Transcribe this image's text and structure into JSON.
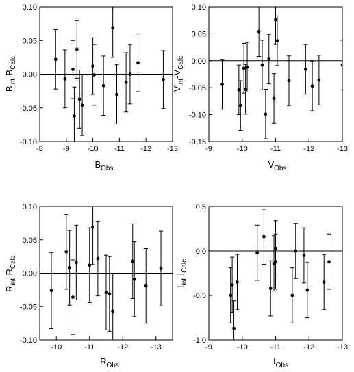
{
  "figure": {
    "panels": [
      {
        "ylabel_main": "B",
        "ylabel_sub1": "int",
        "ylabel_mid": "-B",
        "ylabel_sub2": "Calc",
        "xlabel_main": "B",
        "xlabel_sub": "Obs"
      },
      {
        "ylabel_main": "V",
        "ylabel_sub1": "int",
        "ylabel_mid": "-V",
        "ylabel_sub2": "Calc",
        "xlabel_main": "V",
        "xlabel_sub": "Obs"
      },
      {
        "ylabel_main": "R",
        "ylabel_sub1": "int",
        "ylabel_mid": "-R",
        "ylabel_sub2": "Calc",
        "xlabel_main": "R",
        "xlabel_sub": "Obs"
      },
      {
        "ylabel_main": "I",
        "ylabel_sub1": "int",
        "ylabel_mid": "-I",
        "ylabel_sub2": "Calc",
        "xlabel_main": "I",
        "xlabel_sub": "Obs"
      }
    ]
  },
  "chart_data": [
    {
      "type": "scatter",
      "title": "",
      "xlabel": "B_Obs",
      "ylabel": "B_int-B_Calc",
      "xlim": [
        -8,
        -13
      ],
      "ylim": [
        -0.1,
        0.1
      ],
      "xticks": [
        "-8",
        "-9",
        "-10",
        "-11",
        "-12",
        "-13"
      ],
      "yticks": [
        "-0.10",
        "-0.05",
        "0.00",
        "0.05",
        "0.10"
      ],
      "reference_line_y": 0,
      "error_bars": true,
      "points": [
        {
          "x": -8.6,
          "y": 0.022,
          "err": 0.044
        },
        {
          "x": -8.95,
          "y": -0.007,
          "err": 0.043
        },
        {
          "x": -9.25,
          "y": 0.007,
          "err": 0.043
        },
        {
          "x": -9.3,
          "y": -0.062,
          "err": 0.043
        },
        {
          "x": -9.4,
          "y": 0.037,
          "err": 0.043
        },
        {
          "x": -9.5,
          "y": -0.037,
          "err": 0.043
        },
        {
          "x": -9.6,
          "y": -0.046,
          "err": 0.045
        },
        {
          "x": -10.0,
          "y": 0.012,
          "err": 0.042
        },
        {
          "x": -10.05,
          "y": -0.001,
          "err": 0.045
        },
        {
          "x": -10.4,
          "y": -0.017,
          "err": 0.044
        },
        {
          "x": -10.75,
          "y": 0.069,
          "err": 0.044
        },
        {
          "x": -10.9,
          "y": -0.03,
          "err": 0.044
        },
        {
          "x": -11.25,
          "y": -0.012,
          "err": 0.044
        },
        {
          "x": -11.4,
          "y": 0.0,
          "err": 0.044
        },
        {
          "x": -11.7,
          "y": 0.017,
          "err": 0.043
        },
        {
          "x": -12.65,
          "y": -0.008,
          "err": 0.043
        }
      ]
    },
    {
      "type": "scatter",
      "title": "",
      "xlabel": "V_Obs",
      "ylabel": "V_int-V_Calc",
      "xlim": [
        -9,
        -13
      ],
      "ylim": [
        -0.15,
        0.1
      ],
      "xticks": [
        "-9",
        "-10",
        "-11",
        "-12",
        "-13"
      ],
      "yticks": [
        "-0.15",
        "-0.10",
        "-0.05",
        "0.00",
        "0.05",
        "0.10"
      ],
      "reference_line_y": 0,
      "error_bars": true,
      "points": [
        {
          "x": -9.4,
          "y": -0.044,
          "err": 0.046
        },
        {
          "x": -9.9,
          "y": -0.054,
          "err": 0.046
        },
        {
          "x": -9.95,
          "y": -0.083,
          "err": 0.046
        },
        {
          "x": -10.05,
          "y": -0.014,
          "err": 0.046
        },
        {
          "x": -10.1,
          "y": -0.053,
          "err": 0.046
        },
        {
          "x": -10.15,
          "y": -0.012,
          "err": 0.046
        },
        {
          "x": -10.5,
          "y": 0.054,
          "err": 0.046
        },
        {
          "x": -10.6,
          "y": -0.008,
          "err": 0.046
        },
        {
          "x": -10.7,
          "y": -0.099,
          "err": 0.046
        },
        {
          "x": -10.8,
          "y": 0.003,
          "err": 0.046
        },
        {
          "x": -10.95,
          "y": -0.07,
          "err": 0.046
        },
        {
          "x": -11.0,
          "y": 0.076,
          "err": 0.046
        },
        {
          "x": -11.05,
          "y": 0.037,
          "err": 0.046
        },
        {
          "x": -11.4,
          "y": -0.037,
          "err": 0.046
        },
        {
          "x": -11.9,
          "y": -0.016,
          "err": 0.046
        },
        {
          "x": -12.1,
          "y": -0.047,
          "err": 0.046
        },
        {
          "x": -12.3,
          "y": -0.036,
          "err": 0.046
        },
        {
          "x": -13.0,
          "y": -0.008,
          "err": 0.046
        }
      ]
    },
    {
      "type": "scatter",
      "title": "",
      "xlabel": "R_Obs",
      "ylabel": "R_int-R_Calc",
      "xlim": [
        -9.5,
        -13.5
      ],
      "ylim": [
        -0.1,
        0.1
      ],
      "xticks": [
        "-10",
        "-11",
        "-12",
        "-13"
      ],
      "yticks": [
        "-0.10",
        "-0.05",
        "0.00",
        "0.05",
        "0.10"
      ],
      "reference_line_y": 0,
      "error_bars": true,
      "points": [
        {
          "x": -9.85,
          "y": -0.026,
          "err": 0.057
        },
        {
          "x": -10.3,
          "y": 0.032,
          "err": 0.056
        },
        {
          "x": -10.4,
          "y": 0.008,
          "err": 0.056
        },
        {
          "x": -10.5,
          "y": -0.036,
          "err": 0.056
        },
        {
          "x": -10.6,
          "y": 0.016,
          "err": 0.056
        },
        {
          "x": -11.0,
          "y": 0.012,
          "err": 0.056
        },
        {
          "x": -11.1,
          "y": 0.069,
          "err": 0.056
        },
        {
          "x": -11.25,
          "y": 0.022,
          "err": 0.056
        },
        {
          "x": -11.5,
          "y": -0.029,
          "err": 0.056
        },
        {
          "x": -11.6,
          "y": -0.031,
          "err": 0.056
        },
        {
          "x": -11.7,
          "y": -0.057,
          "err": 0.056
        },
        {
          "x": -12.3,
          "y": 0.018,
          "err": 0.056
        },
        {
          "x": -12.35,
          "y": -0.009,
          "err": 0.056
        },
        {
          "x": -12.7,
          "y": -0.019,
          "err": 0.056
        },
        {
          "x": -13.15,
          "y": 0.007,
          "err": 0.056
        }
      ]
    },
    {
      "type": "scatter",
      "title": "",
      "xlabel": "I_Obs",
      "ylabel": "I_int-I_Calc",
      "xlim": [
        -9,
        -13
      ],
      "ylim": [
        -1.0,
        0.5
      ],
      "xticks": [
        "-9",
        "-10",
        "-11",
        "-12",
        "-13"
      ],
      "yticks": [
        "-1.0",
        "-0.5",
        "0.0",
        "0.5"
      ],
      "reference_line_y": 0,
      "error_bars": true,
      "points": [
        {
          "x": -9.65,
          "y": -0.5,
          "err": 0.31
        },
        {
          "x": -9.7,
          "y": -0.38,
          "err": 0.31
        },
        {
          "x": -9.75,
          "y": -0.87,
          "err": 0.31
        },
        {
          "x": -9.85,
          "y": -0.35,
          "err": 0.31
        },
        {
          "x": -10.45,
          "y": -0.02,
          "err": 0.31
        },
        {
          "x": -10.65,
          "y": 0.16,
          "err": 0.31
        },
        {
          "x": -10.85,
          "y": -0.42,
          "err": 0.31
        },
        {
          "x": -10.95,
          "y": -0.14,
          "err": 0.31
        },
        {
          "x": -11.0,
          "y": -0.12,
          "err": 0.31
        },
        {
          "x": -11.0,
          "y": 0.03,
          "err": 0.31
        },
        {
          "x": -11.5,
          "y": -0.5,
          "err": 0.31
        },
        {
          "x": -11.6,
          "y": 0.0,
          "err": 0.31
        },
        {
          "x": -11.85,
          "y": -0.05,
          "err": 0.31
        },
        {
          "x": -11.95,
          "y": -0.44,
          "err": 0.31
        },
        {
          "x": -12.45,
          "y": -0.35,
          "err": 0.31
        },
        {
          "x": -12.6,
          "y": -0.12,
          "err": 0.31
        }
      ]
    }
  ]
}
